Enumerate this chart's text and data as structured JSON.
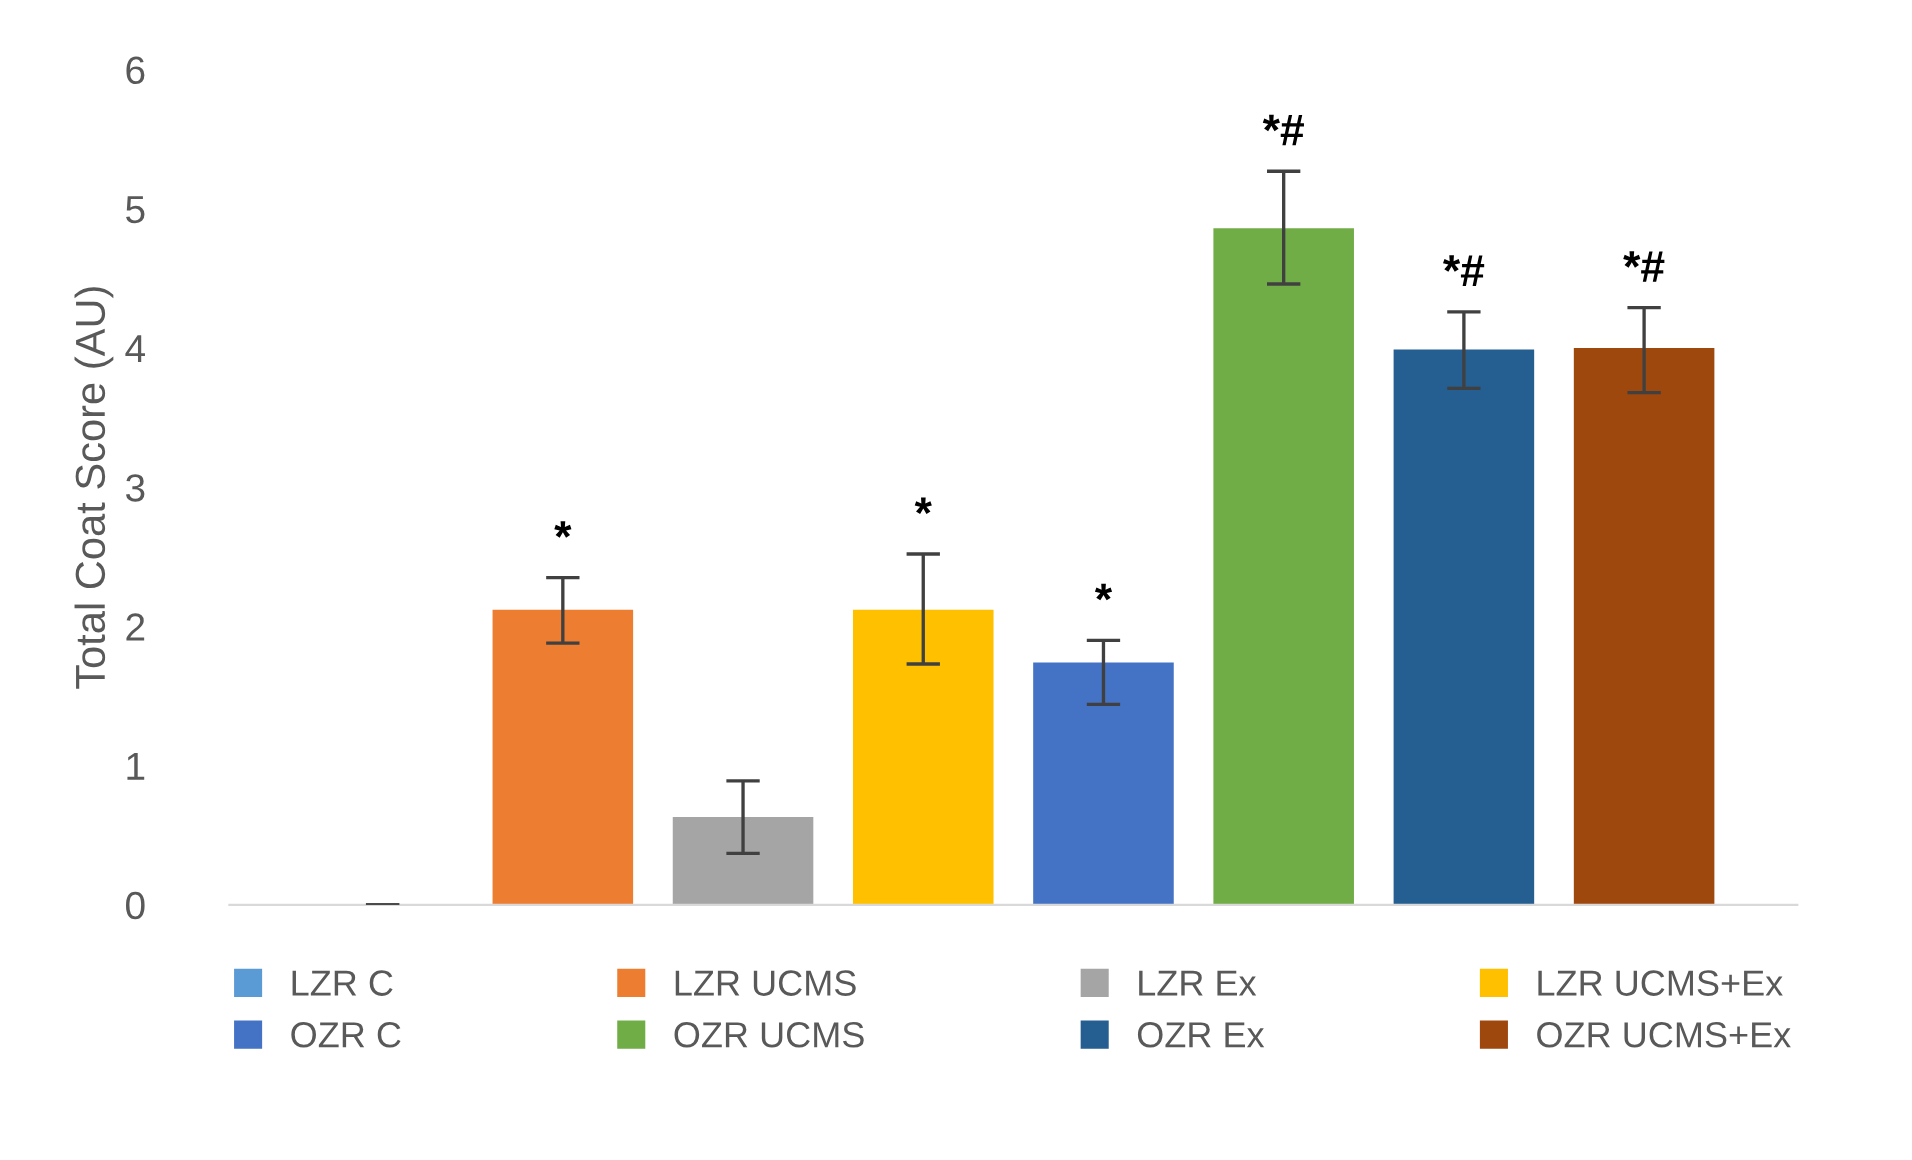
{
  "chart_data": {
    "type": "bar",
    "ylabel": "Total Coat Score (AU)",
    "categories": [
      null
    ],
    "series": [
      {
        "name": "LZR C",
        "color": "#5b9bd5",
        "values": [
          0
        ],
        "errors": [
          0
        ]
      },
      {
        "name": "LZR UCMS",
        "color": "#ed7d31",
        "values": [
          2.12
        ],
        "errors": [
          [
            1.88,
            2.35
          ]
        ],
        "value_labels": [
          "*"
        ]
      },
      {
        "name": "LZR Ex",
        "color": "#a5a5a5",
        "values": [
          0.63
        ],
        "errors": [
          [
            0.37,
            0.89
          ]
        ]
      },
      {
        "name": "LZR UCMS+Ex",
        "color": "#ffc000",
        "values": [
          2.12
        ],
        "errors": [
          [
            1.73,
            2.52
          ]
        ],
        "value_labels": [
          "*"
        ]
      },
      {
        "name": "OZR C",
        "color": "#4472c4",
        "values": [
          1.74
        ],
        "errors": [
          [
            1.44,
            1.9
          ]
        ],
        "value_labels": [
          "*"
        ]
      },
      {
        "name": "OZR UCMS",
        "color": "#70ad47",
        "values": [
          4.86
        ],
        "errors": [
          [
            4.46,
            5.27
          ]
        ],
        "value_labels": [
          "*#"
        ]
      },
      {
        "name": "OZR Ex",
        "color": "#255e91",
        "values": [
          3.99
        ],
        "errors": [
          [
            3.71,
            4.26
          ]
        ],
        "value_labels": [
          "*#"
        ]
      },
      {
        "name": "OZR UCMS+Ex",
        "color": "#9e480e",
        "values": [
          4.0
        ],
        "errors": [
          [
            3.68,
            4.29
          ]
        ],
        "value_labels": [
          "*#"
        ]
      }
    ],
    "ylim": [
      0,
      6
    ],
    "yticks": [
      0,
      1,
      2,
      3,
      4,
      5,
      6
    ],
    "grid": false,
    "legend": "bottom"
  }
}
